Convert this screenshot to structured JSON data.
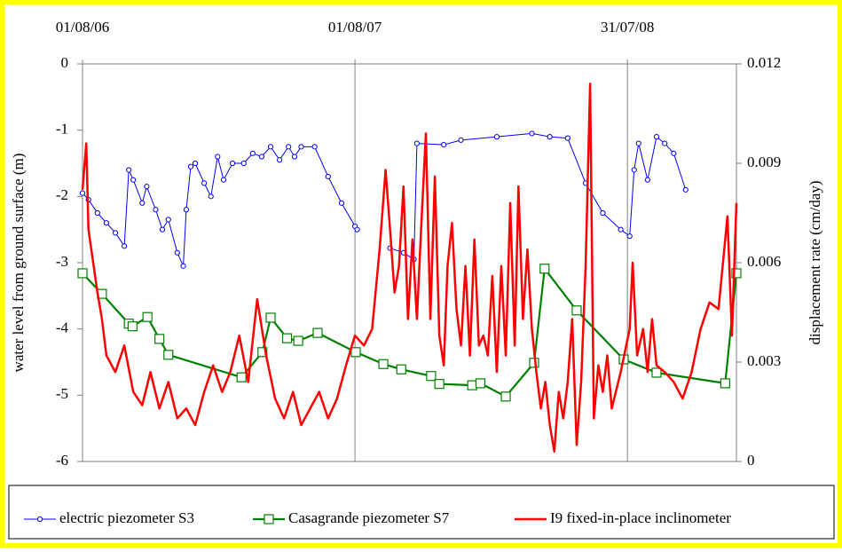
{
  "chart_data": {
    "type": "line",
    "x_axis_position": "top",
    "xlim": [
      "2006-08-01",
      "2008-12-24"
    ],
    "xticks": [
      {
        "value": "2006-08-01",
        "label": "01/08/06"
      },
      {
        "value": "2007-08-01",
        "label": "01/08/07"
      },
      {
        "value": "2008-07-31",
        "label": "31/07/08"
      }
    ],
    "x_grid": true,
    "ylabel": "water level from ground surface (m)",
    "ylim": [
      -6,
      0
    ],
    "yticks": [
      0,
      -1,
      -2,
      -3,
      -4,
      -5,
      -6
    ],
    "y2label": "displacement rate (cm/day)",
    "y2lim": [
      0,
      0.012
    ],
    "y2ticks": [
      0,
      0.003,
      0.006,
      0.009,
      0.012
    ],
    "legend": "bottom",
    "series": [
      {
        "name": "electric piezometer S3",
        "color": "#0000ff",
        "marker": "circle",
        "axis": "y",
        "x": [
          "2006-08-01",
          "2006-08-09",
          "2006-08-21",
          "2006-09-02",
          "2006-09-14",
          "2006-09-26",
          "2006-10-02",
          "2006-10-08",
          "2006-10-20",
          "2006-10-26",
          "2006-11-07",
          "2006-11-16",
          "2006-11-24",
          "2006-12-06",
          "2006-12-14",
          "2006-12-18",
          "2006-12-24",
          "2006-12-30",
          "2007-01-11",
          "2007-01-20",
          "2007-01-29",
          "2007-02-06",
          "2007-02-18",
          "2007-03-05",
          "2007-03-17",
          "2007-03-29",
          "2007-04-10",
          "2007-04-22",
          "2007-05-04",
          "2007-05-12",
          "2007-05-21",
          "2007-06-08",
          "2007-06-26",
          "2007-07-14",
          "2007-08-01",
          "2007-08-04",
          "2007-08-20",
          "2007-09-17",
          "2007-10-05",
          "2007-10-19",
          "2007-10-23",
          "2007-11-28",
          "2007-12-21",
          "2008-02-07",
          "2008-03-25",
          "2008-04-18",
          "2008-05-12",
          "2008-06-05",
          "2008-06-28",
          "2008-07-22",
          "2008-08-03",
          "2008-08-09",
          "2008-08-15",
          "2008-08-27",
          "2008-09-08",
          "2008-09-19",
          "2008-10-01",
          "2008-10-17"
        ],
        "values": [
          -1.95,
          -2.05,
          -2.25,
          -2.4,
          -2.55,
          -2.75,
          -1.6,
          -1.75,
          -2.1,
          -1.85,
          -2.2,
          -2.5,
          -2.35,
          -2.85,
          -3.05,
          -2.2,
          -1.55,
          -1.5,
          -1.8,
          -2.0,
          -1.4,
          -1.75,
          -1.5,
          -1.5,
          -1.35,
          -1.4,
          -1.25,
          -1.45,
          -1.25,
          -1.4,
          -1.25,
          -1.25,
          -1.7,
          -2.1,
          -2.45,
          -2.5,
          null,
          -2.78,
          -2.85,
          -2.95,
          -1.2,
          -1.22,
          -1.15,
          -1.1,
          -1.05,
          -1.1,
          -1.12,
          -1.8,
          -2.25,
          -2.5,
          -2.6,
          -1.6,
          -1.2,
          -1.75,
          -1.1,
          -1.2,
          -1.35,
          -1.9
        ]
      },
      {
        "name": "Casagrande piezometer S7",
        "color": "#008000",
        "marker": "square",
        "axis": "y",
        "x": [
          "2006-08-01",
          "2006-08-27",
          "2006-10-02",
          "2006-10-07",
          "2006-10-27",
          "2006-11-12",
          "2006-11-24",
          "2007-03-02",
          "2007-03-30",
          "2007-04-10",
          "2007-05-02",
          "2007-05-17",
          "2007-06-12",
          "2007-08-02",
          "2007-09-08",
          "2007-10-02",
          "2007-11-11",
          "2007-11-22",
          "2008-01-05",
          "2008-01-16",
          "2008-02-19",
          "2008-03-28",
          "2008-04-11",
          "2008-05-24",
          "2008-07-26",
          "2008-09-08",
          "2008-12-09",
          "2008-12-24"
        ],
        "values": [
          -3.16,
          -3.47,
          -3.92,
          -3.96,
          -3.82,
          -4.15,
          -4.39,
          -4.73,
          -4.35,
          -3.83,
          -4.14,
          -4.18,
          -4.06,
          -4.35,
          -4.53,
          -4.61,
          -4.71,
          -4.83,
          -4.85,
          -4.82,
          -5.02,
          -4.51,
          -3.09,
          -3.72,
          -4.46,
          -4.66,
          -4.82,
          -3.16
        ]
      },
      {
        "name": "I9 fixed-in-place inclinometer",
        "color": "#ff0000",
        "marker": "none",
        "axis": "y2",
        "x": [
          "2006-08-01",
          "2006-08-06",
          "2006-08-09",
          "2006-08-21",
          "2006-08-27",
          "2006-09-02",
          "2006-09-14",
          "2006-09-26",
          "2006-10-08",
          "2006-10-20",
          "2006-10-31",
          "2006-11-12",
          "2006-11-24",
          "2006-12-06",
          "2006-12-18",
          "2006-12-30",
          "2007-01-11",
          "2007-01-23",
          "2007-02-04",
          "2007-02-15",
          "2007-02-27",
          "2007-03-11",
          "2007-03-23",
          "2007-04-04",
          "2007-04-16",
          "2007-04-28",
          "2007-05-10",
          "2007-05-21",
          "2007-06-02",
          "2007-06-14",
          "2007-06-26",
          "2007-07-08",
          "2007-07-20",
          "2007-08-01",
          "2007-08-13",
          "2007-08-24",
          "2007-09-03",
          "2007-09-11",
          "2007-09-17",
          "2007-09-23",
          "2007-09-29",
          "2007-10-05",
          "2007-10-11",
          "2007-10-17",
          "2007-10-23",
          "2007-10-29",
          "2007-11-04",
          "2007-11-10",
          "2007-11-16",
          "2007-11-22",
          "2007-11-28",
          "2007-12-03",
          "2007-12-09",
          "2007-12-15",
          "2007-12-21",
          "2007-12-27",
          "2008-01-02",
          "2008-01-08",
          "2008-01-14",
          "2008-01-20",
          "2008-01-26",
          "2008-02-01",
          "2008-02-07",
          "2008-02-13",
          "2008-02-19",
          "2008-02-25",
          "2008-03-02",
          "2008-03-07",
          "2008-03-13",
          "2008-03-19",
          "2008-03-25",
          "2008-03-31",
          "2008-04-06",
          "2008-04-12",
          "2008-04-18",
          "2008-04-24",
          "2008-04-30",
          "2008-05-06",
          "2008-05-12",
          "2008-05-18",
          "2008-05-24",
          "2008-05-30",
          "2008-06-05",
          "2008-06-11",
          "2008-06-16",
          "2008-06-22",
          "2008-06-28",
          "2008-07-04",
          "2008-07-10",
          "2008-07-22",
          "2008-08-03",
          "2008-08-07",
          "2008-08-13",
          "2008-08-21",
          "2008-08-27",
          "2008-09-02",
          "2008-09-08",
          "2008-09-19",
          "2008-10-01",
          "2008-10-13",
          "2008-10-25",
          "2008-11-06",
          "2008-11-18",
          "2008-11-30",
          "2008-12-12",
          "2008-12-18",
          "2008-12-24"
        ],
        "values": [
          0.0082,
          0.0096,
          0.007,
          0.0051,
          0.0043,
          0.0032,
          0.0027,
          0.0035,
          0.0021,
          0.0017,
          0.0027,
          0.0016,
          0.0024,
          0.0013,
          0.0016,
          0.0011,
          0.0021,
          0.0029,
          0.0021,
          0.0027,
          0.0038,
          0.0024,
          0.0049,
          0.0032,
          0.0019,
          0.0013,
          0.0021,
          0.0011,
          0.0016,
          0.0021,
          0.0013,
          0.0019,
          0.0029,
          0.0038,
          0.0035,
          0.004,
          0.0064,
          0.0088,
          0.007,
          0.0051,
          0.0059,
          0.0083,
          0.0043,
          0.0067,
          0.0043,
          0.0072,
          0.0099,
          0.0043,
          0.0086,
          0.0038,
          0.0029,
          0.0059,
          0.0072,
          0.0046,
          0.0035,
          0.0059,
          0.0032,
          0.0067,
          0.0035,
          0.0038,
          0.0032,
          0.0056,
          0.0027,
          0.0059,
          0.0032,
          0.0078,
          0.0035,
          0.0083,
          0.0043,
          0.0064,
          0.004,
          0.0027,
          0.0016,
          0.0024,
          0.0011,
          0.0003,
          0.0021,
          0.0013,
          0.0024,
          0.0043,
          0.0005,
          0.0024,
          0.0059,
          0.0114,
          0.0013,
          0.0029,
          0.0021,
          0.0032,
          0.0016,
          0.0027,
          0.004,
          0.006,
          0.0032,
          0.004,
          0.0027,
          0.0043,
          0.0029,
          0.0027,
          0.0024,
          0.0019,
          0.0027,
          0.004,
          0.0048,
          0.0046,
          0.0074,
          0.0038,
          0.0078
        ]
      }
    ]
  }
}
